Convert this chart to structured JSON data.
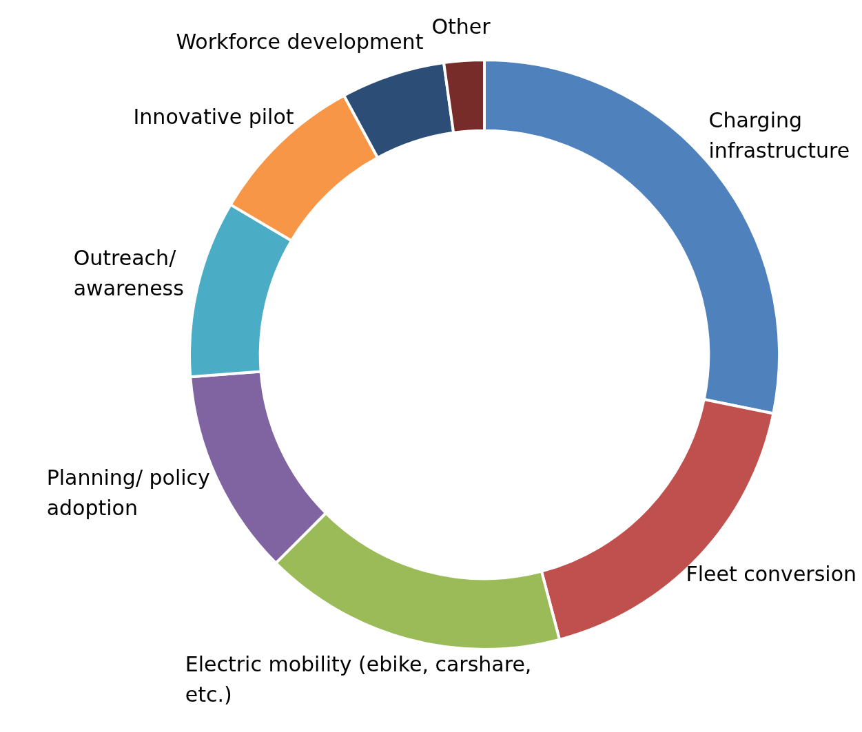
{
  "chart_data": {
    "type": "donut",
    "categories": [
      "Charging infrastructure",
      "Fleet conversion",
      "Electric mobility (ebike, carshare, etc.)",
      "Planning/ policy adoption",
      "Outreach/ awareness",
      "Innovative pilot",
      "Workforce development",
      "Other"
    ],
    "values": [
      28.2,
      17.7,
      16.6,
      11.3,
      9.7,
      8.6,
      5.7,
      2.2
    ],
    "colors": [
      "#4f81bd",
      "#c0504d",
      "#9bbb59",
      "#8064a2",
      "#4bacc6",
      "#f79646",
      "#2c4d75",
      "#772c2a"
    ]
  }
}
